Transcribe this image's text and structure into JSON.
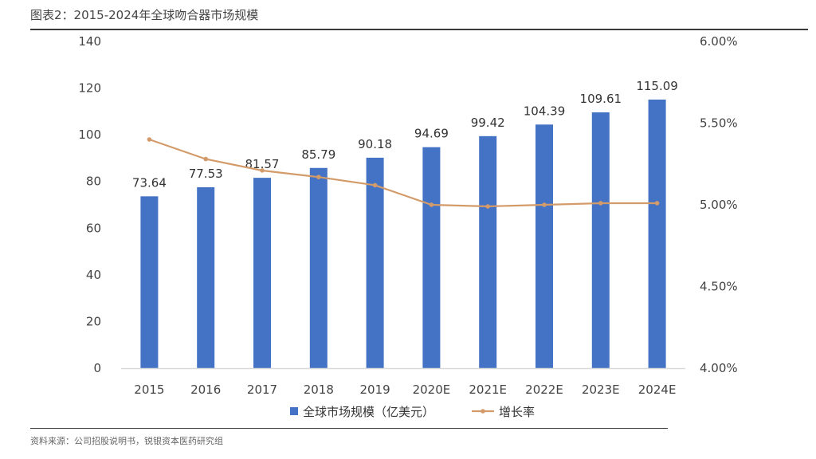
{
  "header": {
    "title": "图表2：2015-2024年全球吻合器市场规模"
  },
  "footer": {
    "source": "资料来源：公司招股说明书，锐银资本医药研究组"
  },
  "colors": {
    "bar": "#4472C4",
    "line": "#D39B6A",
    "axis": "#D9D9D9",
    "rule": "#3A3A3A"
  },
  "chart_data": {
    "type": "bar",
    "title": "图表2：2015-2024年全球吻合器市场规模",
    "categories": [
      "2015",
      "2016",
      "2017",
      "2018",
      "2019",
      "2020E",
      "2021E",
      "2022E",
      "2023E",
      "2024E"
    ],
    "series": [
      {
        "name": "全球市场规模（亿美元）",
        "type": "bar",
        "axis": "left",
        "values": [
          73.64,
          77.53,
          81.57,
          85.79,
          90.18,
          94.69,
          99.42,
          104.39,
          109.61,
          115.09
        ],
        "labels": [
          "73.64",
          "77.53",
          "81.57",
          "85.79",
          "90.18",
          "94.69",
          "99.42",
          "104.39",
          "109.61",
          "115.09"
        ]
      },
      {
        "name": "增长率",
        "type": "line",
        "axis": "right",
        "values": [
          5.4,
          5.28,
          5.21,
          5.17,
          5.12,
          5.0,
          4.99,
          5.0,
          5.01,
          5.01
        ]
      }
    ],
    "y_left": {
      "min": 0,
      "max": 140,
      "ticks": [
        "0",
        "20",
        "40",
        "60",
        "80",
        "100",
        "120",
        "140"
      ]
    },
    "y_right": {
      "min": 4.0,
      "max": 6.0,
      "unit": "%",
      "ticks": [
        "4.00%",
        "4.50%",
        "5.00%",
        "5.50%",
        "6.00%"
      ]
    },
    "grid": false,
    "legend_position": "bottom"
  }
}
